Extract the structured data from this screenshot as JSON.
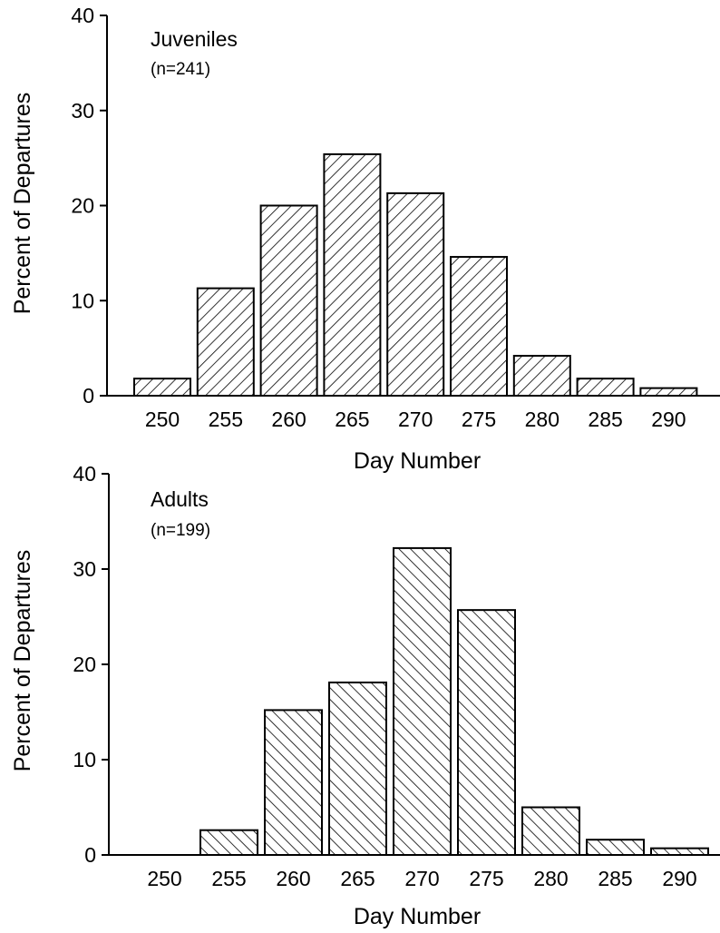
{
  "chart_data": [
    {
      "type": "bar",
      "title": "",
      "annotation": "Juveniles",
      "n_label": "(n=241)",
      "hatch": "forward",
      "xlabel": "Day Number",
      "ylabel": "Percent of Departures",
      "categories": [
        "250",
        "255",
        "260",
        "265",
        "270",
        "275",
        "280",
        "285",
        "290"
      ],
      "values": [
        1.8,
        11.3,
        20.0,
        25.4,
        21.3,
        14.6,
        4.2,
        1.8,
        0.8
      ],
      "ylim": [
        0,
        40
      ],
      "yticks": [
        "0",
        "10",
        "20",
        "30",
        "40"
      ],
      "grid": false
    },
    {
      "type": "bar",
      "title": "",
      "annotation": "Adults",
      "n_label": "(n=199)",
      "hatch": "backward",
      "xlabel": "Day Number",
      "ylabel": "Percent of Departures",
      "categories": [
        "250",
        "255",
        "260",
        "265",
        "270",
        "275",
        "280",
        "285",
        "290"
      ],
      "values": [
        0,
        2.6,
        15.2,
        18.1,
        32.2,
        25.7,
        5.0,
        1.6,
        0.7
      ],
      "ylim": [
        0,
        40
      ],
      "yticks": [
        "0",
        "10",
        "20",
        "30",
        "40"
      ],
      "grid": false
    }
  ]
}
